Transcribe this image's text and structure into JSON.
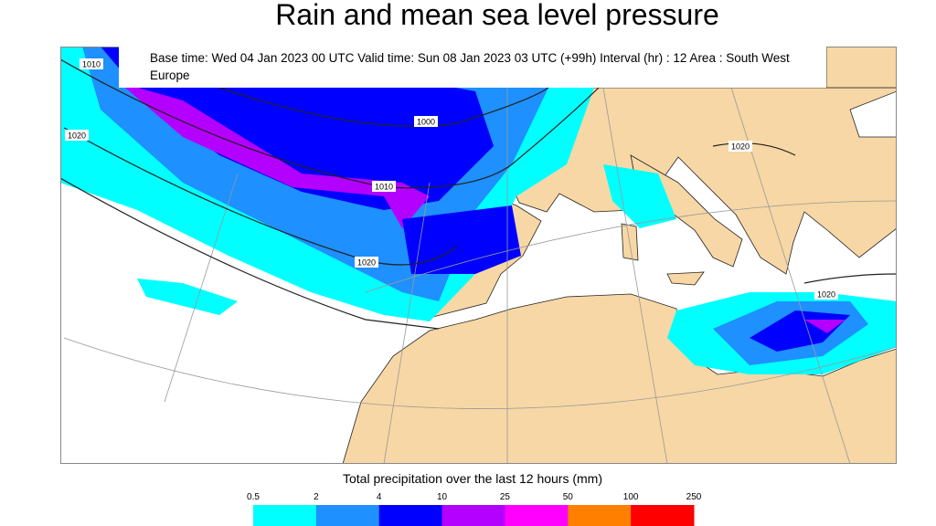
{
  "header": {
    "title": "Rain and mean sea level pressure",
    "subtitle": "Base time: Wed 04 Jan 2023 00 UTC Valid time: Sun 08 Jan 2023 03 UTC (+99h) Interval (hr) : 12 Area : South West Europe"
  },
  "map": {
    "isobar_labels": [
      1010,
      1000,
      1010,
      1020,
      1020,
      1020,
      1020
    ]
  },
  "legend": {
    "title": "Total precipitation over the last 12 hours (mm)",
    "ticks": [
      0.5,
      2,
      4,
      10,
      25,
      50,
      100,
      250
    ],
    "colors": [
      "#00ffff",
      "#1e90ff",
      "#0000ff",
      "#b400ff",
      "#ff00ff",
      "#ff8000",
      "#ff0000"
    ]
  }
}
